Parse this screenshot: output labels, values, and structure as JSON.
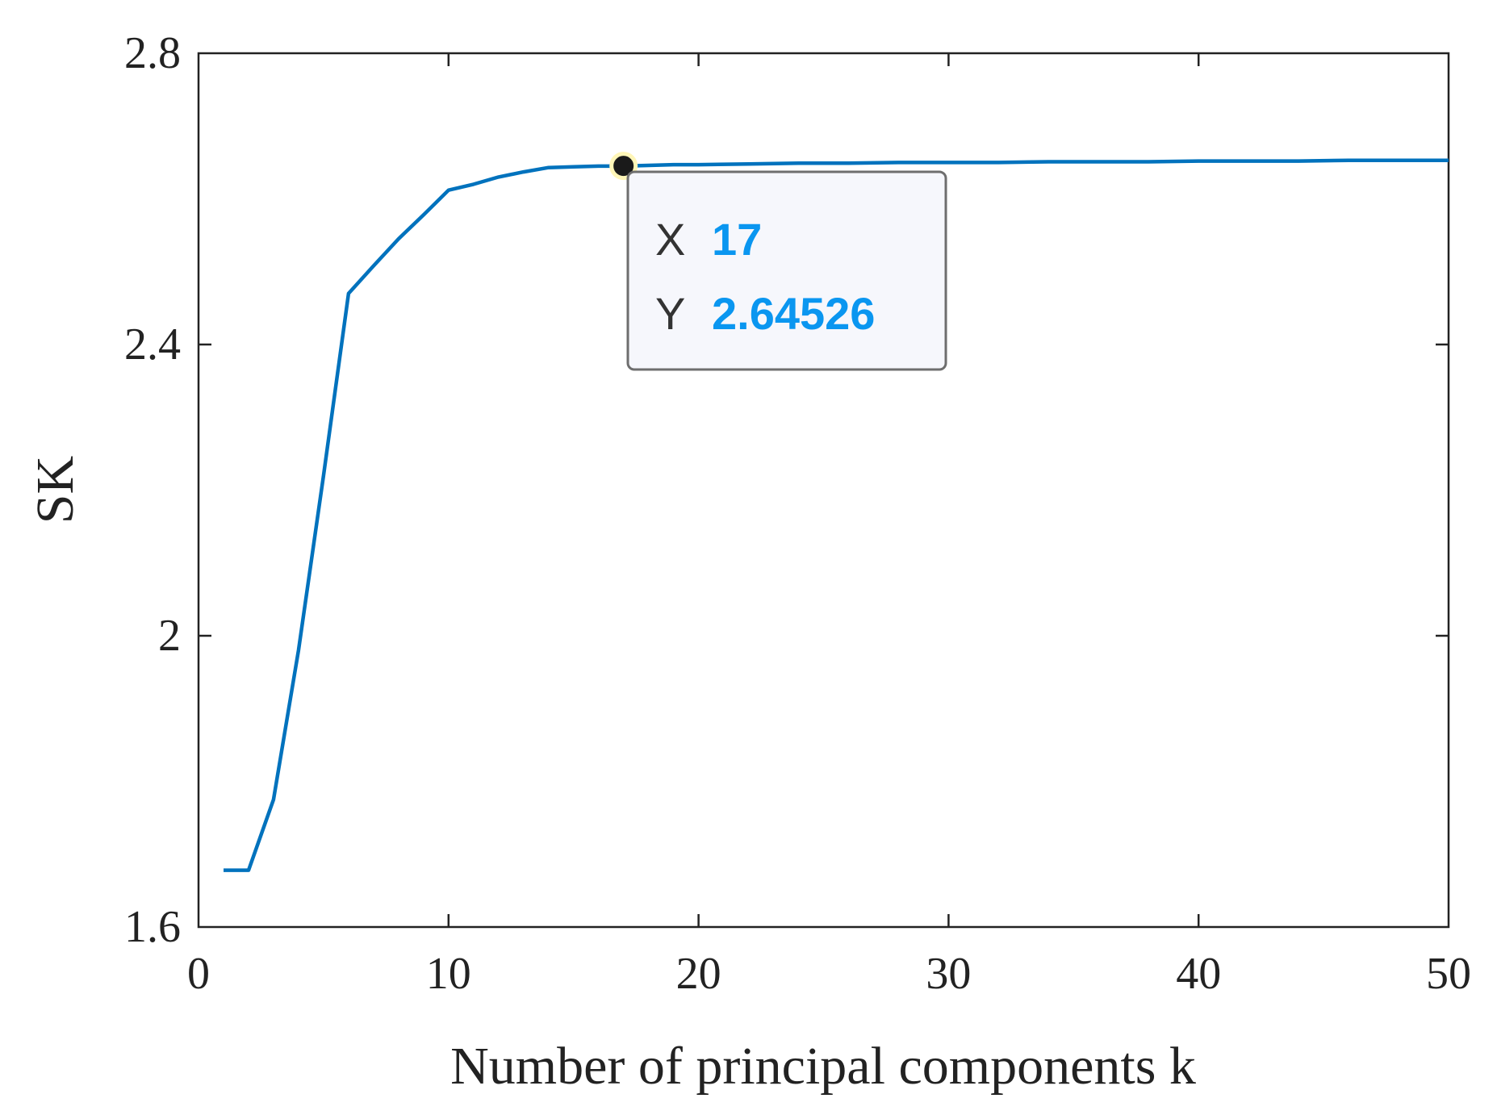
{
  "chart_data": {
    "type": "line",
    "title": "",
    "xlabel": "Number of principal components k",
    "ylabel": "SK",
    "xlim": [
      0,
      50
    ],
    "ylim": [
      1.6,
      2.8
    ],
    "xticks": [
      0,
      10,
      20,
      30,
      40,
      50
    ],
    "xtick_labels": [
      "0",
      "10",
      "20",
      "30",
      "40",
      "50"
    ],
    "yticks": [
      1.6,
      2.0,
      2.4,
      2.8
    ],
    "ytick_labels": [
      "1.6",
      "2",
      "2.4",
      "2.8"
    ],
    "grid": false,
    "series": [
      {
        "color": "#0072bd",
        "x": [
          1,
          2,
          3,
          4,
          5,
          6,
          7,
          8,
          9,
          10,
          11,
          12,
          13,
          14,
          15,
          16,
          17,
          18,
          19,
          20,
          22,
          24,
          26,
          28,
          30,
          32,
          34,
          36,
          38,
          40,
          42,
          44,
          46,
          48,
          50
        ],
        "y": [
          1.678,
          1.678,
          1.775,
          1.98,
          2.22,
          2.47,
          2.508,
          2.545,
          2.578,
          2.612,
          2.62,
          2.63,
          2.637,
          2.643,
          2.644,
          2.645,
          2.645,
          2.646,
          2.647,
          2.647,
          2.648,
          2.649,
          2.649,
          2.65,
          2.65,
          2.65,
          2.651,
          2.651,
          2.651,
          2.652,
          2.652,
          2.652,
          2.653,
          2.653,
          2.653
        ]
      }
    ],
    "datatip": {
      "x": 17,
      "y": 2.64526,
      "x_key": "X",
      "y_key": "Y",
      "x_text": "17",
      "y_text": "2.64526",
      "value_color": "#0a96f0"
    }
  }
}
